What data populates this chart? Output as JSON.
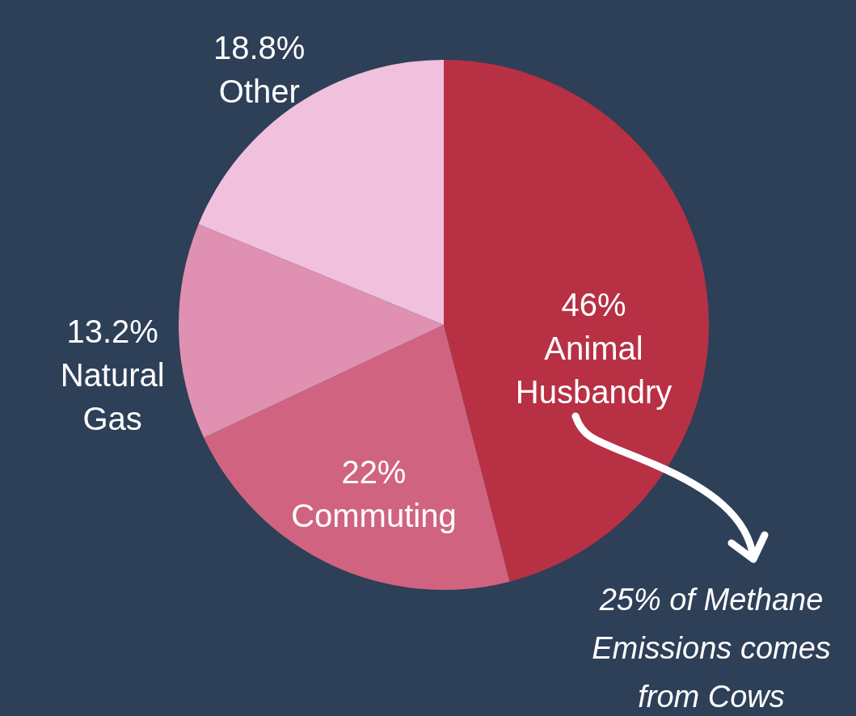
{
  "chart_data": {
    "type": "pie",
    "categories": [
      "Animal Husbandry",
      "Commuting",
      "Natural Gas",
      "Other"
    ],
    "values": [
      46,
      22,
      13.2,
      18.8
    ],
    "value_labels": [
      "46%",
      "22%",
      "13.2%",
      "18.8%"
    ],
    "colors": [
      "#b83044",
      "#d06480",
      "#e090b0",
      "#f0c0dc"
    ],
    "annotations": [
      "25% of Methane Emissions comes from Cows"
    ]
  }
}
